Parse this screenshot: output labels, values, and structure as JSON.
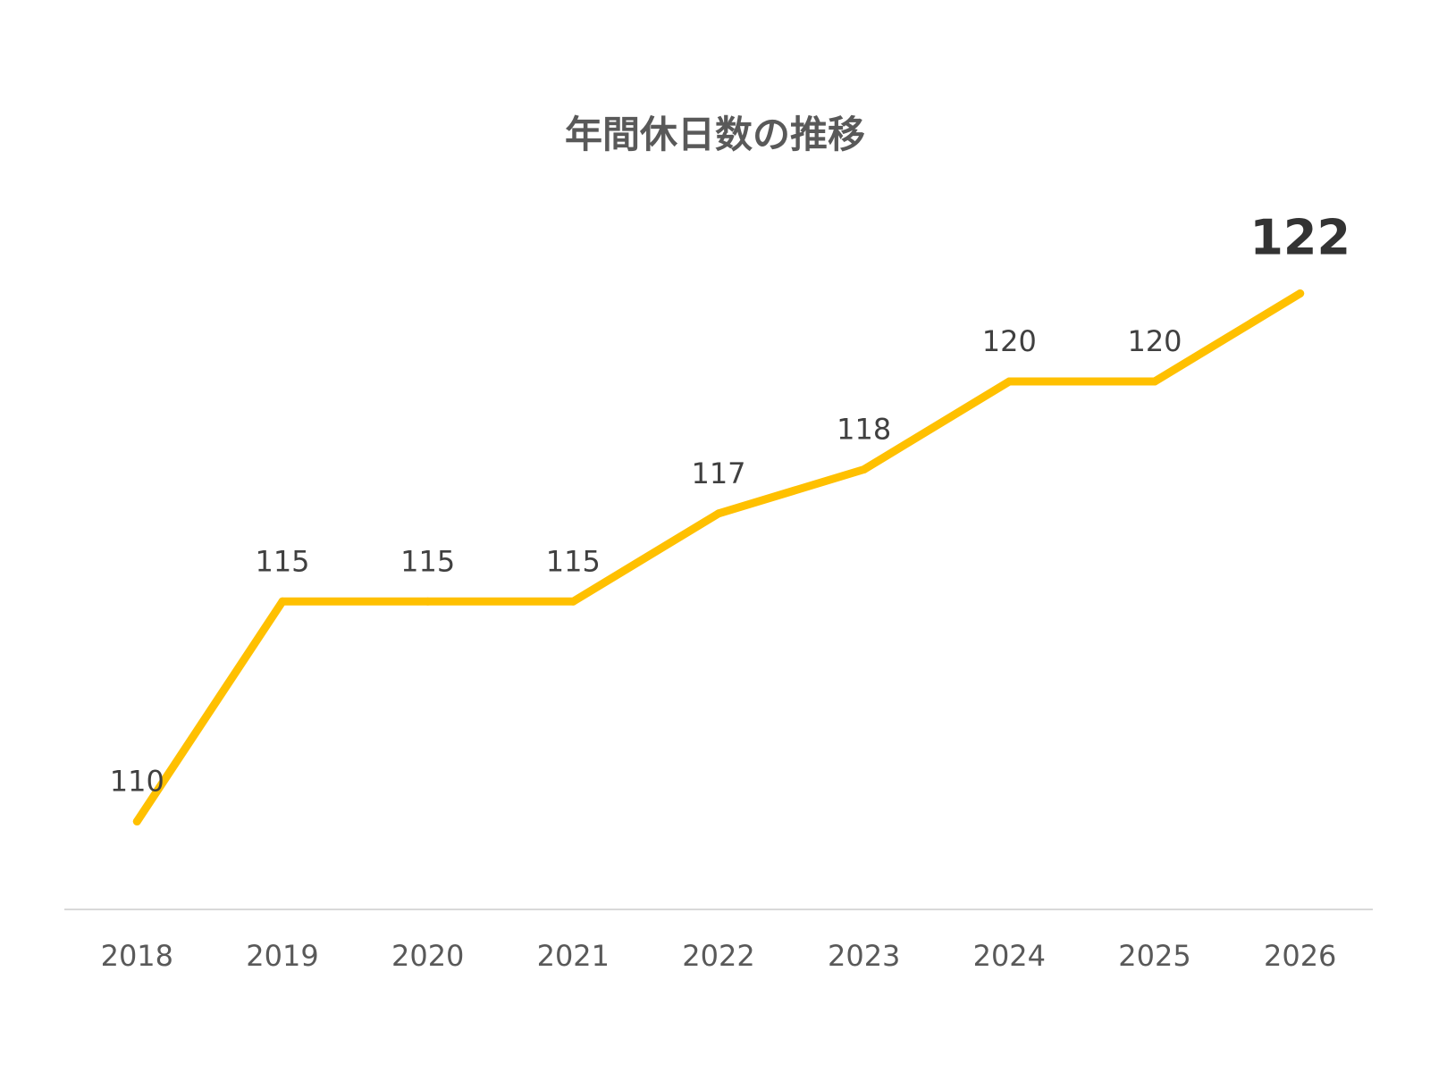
{
  "chart_data": {
    "type": "line",
    "title": "年間休日数の推移",
    "xlabel": "",
    "ylabel": "",
    "categories": [
      "2018",
      "2019",
      "2020",
      "2021",
      "2022",
      "2023",
      "2024",
      "2025",
      "2026"
    ],
    "series": [
      {
        "values": [
          110,
          115,
          115,
          115,
          117,
          118,
          120,
          120,
          122
        ],
        "color": "#FFC000"
      }
    ],
    "data_labels": [
      "110",
      "115",
      "115",
      "115",
      "117",
      "118",
      "120",
      "120",
      "122"
    ],
    "emphasized_label_index": 8,
    "ylim": [
      108,
      124
    ],
    "grid": false,
    "legend": "none",
    "axis_line_color": "#D9D9D9"
  }
}
